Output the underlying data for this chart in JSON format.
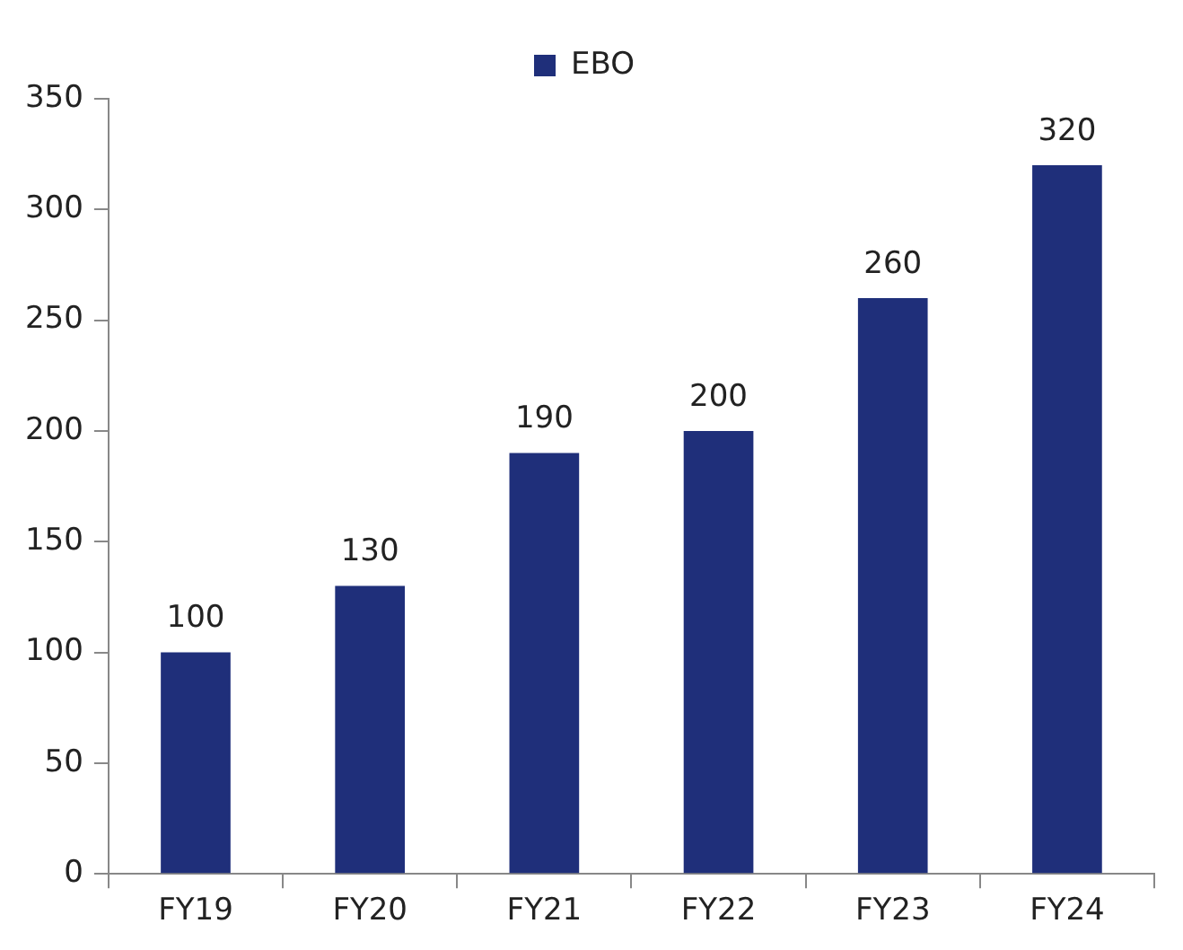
{
  "chart_data": {
    "type": "bar",
    "categories": [
      "FY19",
      "FY20",
      "FY21",
      "FY22",
      "FY23",
      "FY24"
    ],
    "series": [
      {
        "name": "EBO",
        "color": "#1f2f7a",
        "values": [
          100,
          130,
          190,
          200,
          260,
          320
        ]
      }
    ],
    "ylim": [
      0,
      350
    ],
    "yticks": [
      0,
      50,
      100,
      150,
      200,
      250,
      300,
      350
    ],
    "grid": false,
    "legend": "top",
    "data_labels": true
  }
}
